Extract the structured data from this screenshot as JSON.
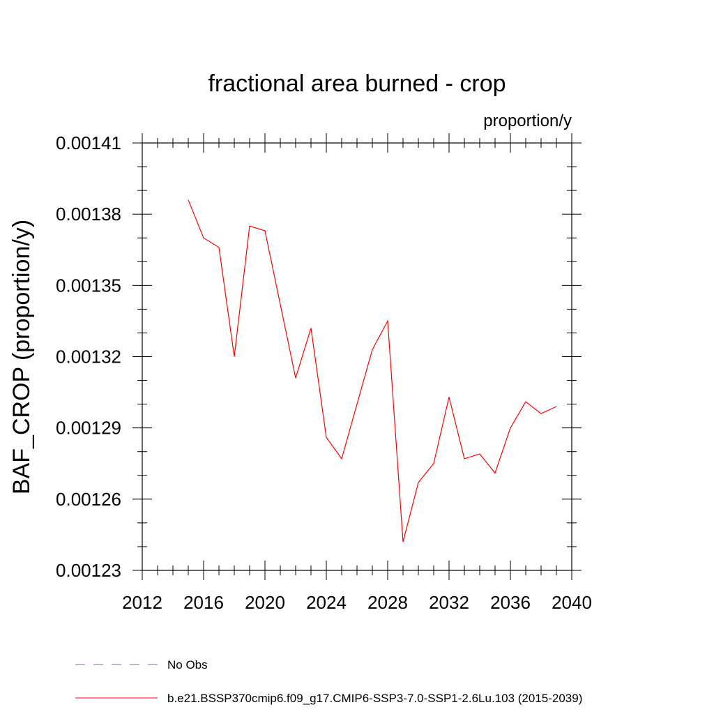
{
  "chart_data": {
    "type": "line",
    "title": "fractional area burned - crop",
    "units_label": "proportion/y",
    "ylabel": "BAF_CROP  (proportion/y)",
    "xlim": [
      2012,
      2040
    ],
    "ylim": [
      0.00123,
      0.00141
    ],
    "x_ticks": [
      "2012",
      "2016",
      "2020",
      "2024",
      "2028",
      "2032",
      "2036",
      "2040"
    ],
    "y_ticks": [
      "0.00123",
      "0.00126",
      "0.00129",
      "0.00132",
      "0.00135",
      "0.00138",
      "0.00141"
    ],
    "grid": false,
    "legend_position": "bottom",
    "series": [
      {
        "name": "No Obs",
        "color": "#7b68b0",
        "dash": "dashed",
        "x": [],
        "y": []
      },
      {
        "name": "b.e21.BSSP370cmip6.f09_g17.CMIP6-SSP3-7.0-SSP1-2.6Lu.103 (2015-2039)",
        "color": "#ff0000",
        "dash": "solid",
        "x": [
          2015,
          2016,
          2017,
          2018,
          2019,
          2020,
          2021,
          2022,
          2023,
          2024,
          2025,
          2026,
          2027,
          2028,
          2029,
          2030,
          2031,
          2032,
          2033,
          2034,
          2035,
          2036,
          2037,
          2038,
          2039
        ],
        "y": [
          0.001386,
          0.00137,
          0.001366,
          0.00132,
          0.001375,
          0.001373,
          0.001342,
          0.001311,
          0.001332,
          0.001286,
          0.001277,
          0.0013,
          0.001323,
          0.001335,
          0.001242,
          0.001267,
          0.001275,
          0.001303,
          0.001277,
          0.001279,
          0.001271,
          0.00129,
          0.001301,
          0.001296,
          0.001299
        ]
      }
    ]
  }
}
